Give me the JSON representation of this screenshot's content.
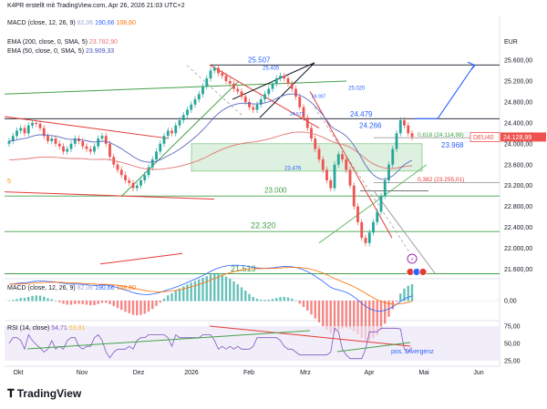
{
  "header": {
    "author_line": "K4PR erstellt mit TradingView.com, Apr 26, 2026 21:03 UTC+2",
    "macd_label": "MACD (close, 12, 26, 9)",
    "macd_v1": "82,06",
    "macd_v2": "190,66",
    "macd_v3": "108,60",
    "ema200_label": "EMA (200, close, 0, SMA, 5)",
    "ema200_value": "23.782,90",
    "ema50_label": "EMA (50, close, 0, SMA, 5)",
    "ema50_value": "23.909,33",
    "currency": "EUR"
  },
  "colors": {
    "up": "#26a69a",
    "down": "#ef5350",
    "ema200": "#e57373",
    "ema50": "#5c6bc0",
    "green_line": "#43a047",
    "red_line": "#e53935",
    "blue": "#2962ff",
    "zone": "#c8e6c9",
    "price_tag": "#ef5350"
  },
  "price_panel": {
    "price_ticks": [
      "25.600,00",
      "25.200,00",
      "24.800,00",
      "24.400,00",
      "24.000,00",
      "23.600,00",
      "23.200,00",
      "22.800,00",
      "22.400,00",
      "22.000,00",
      "21.600,00"
    ],
    "current_label": "DEU40",
    "current_price": "24.128,99",
    "annotations": {
      "a25507": "25.507",
      "a25405": "25.405",
      "a25020": "25.020",
      "a24907": "24.907",
      "a24577": "24.577",
      "a24479": "24.479",
      "a24266": "24.266",
      "fib618": "0,618 (24.114,99)",
      "a23968": "23.968",
      "a23476": "23.476",
      "fib382": "0,382 (23.255,01)",
      "a23000": "23.000",
      "a22320": "22.320",
      "a21513": "21.513",
      "left5": "5"
    }
  },
  "macd_panel": {
    "label": "MACD (close, 12, 26, 9)",
    "v1": "82,06",
    "v2": "190,66",
    "v3": "108,60",
    "zero_tick": "0,00"
  },
  "rsi_panel": {
    "label": "RSI (14, close)",
    "v1": "54,71",
    "v2": "53,91",
    "tick75": "75,00",
    "tick50": "50,00",
    "tick25": "25,00",
    "divergence_label": "pos. Divergenz"
  },
  "time_axis": [
    "Okt",
    "Nov",
    "Dez",
    "2026",
    "Feb",
    "Mrz",
    "Apr",
    "Mai",
    "Jun"
  ],
  "footer": {
    "brand": "TradingView"
  },
  "chart_data": {
    "type": "candlestick",
    "title": "DEU40",
    "currency": "EUR",
    "ylim": [
      21400,
      25800
    ],
    "y_ticks": [
      25600,
      25200,
      24800,
      24400,
      24000,
      23600,
      23200,
      22800,
      22400,
      22000,
      21600
    ],
    "x_ticks": [
      "Okt",
      "Nov",
      "Dez",
      "2026",
      "Feb",
      "Mrz",
      "Apr",
      "Mai",
      "Jun"
    ],
    "last_price": 24128.99,
    "closes": [
      24050,
      24150,
      24250,
      24300,
      24200,
      24350,
      24400,
      24380,
      24300,
      24150,
      24050,
      24100,
      24000,
      23950,
      23850,
      23900,
      24000,
      24100,
      24050,
      23950,
      23900,
      23850,
      23950,
      24100,
      24150,
      24000,
      23750,
      23600,
      23500,
      23400,
      23300,
      23250,
      23150,
      23200,
      23300,
      23400,
      23550,
      23700,
      23850,
      24000,
      24150,
      24250,
      24200,
      24350,
      24450,
      24550,
      24650,
      24750,
      24850,
      24950,
      25100,
      25250,
      25400,
      25450,
      25350,
      25300,
      25200,
      25150,
      25050,
      25000,
      24900,
      24800,
      24700,
      24650,
      24750,
      24850,
      24950,
      25050,
      25150,
      25250,
      25300,
      25250,
      25150,
      25050,
      24900,
      24700,
      24500,
      24300,
      24100,
      23900,
      23700,
      23500,
      23300,
      23150,
      23600,
      23800,
      23700,
      23500,
      23200,
      22800,
      22500,
      22200,
      22100,
      22300,
      22500,
      22700,
      23000,
      23300,
      23600,
      23900,
      24200,
      24450,
      24350,
      24200,
      24128.99
    ],
    "levels": [
      25507,
      25020,
      24479,
      24266,
      23968,
      23476,
      23000,
      22320,
      21513
    ],
    "fib": [
      {
        "ratio": "0,618",
        "value": 24114.99
      },
      {
        "ratio": "0,382",
        "value": 23255.01
      }
    ],
    "ema200_last": 23782.9,
    "ema50_last": 23909.33,
    "macd": {
      "values": [
        82.06,
        190.66,
        108.6
      ]
    },
    "rsi": {
      "values": [
        54.71,
        53.91
      ],
      "ticks": [
        75,
        50,
        25
      ]
    }
  }
}
